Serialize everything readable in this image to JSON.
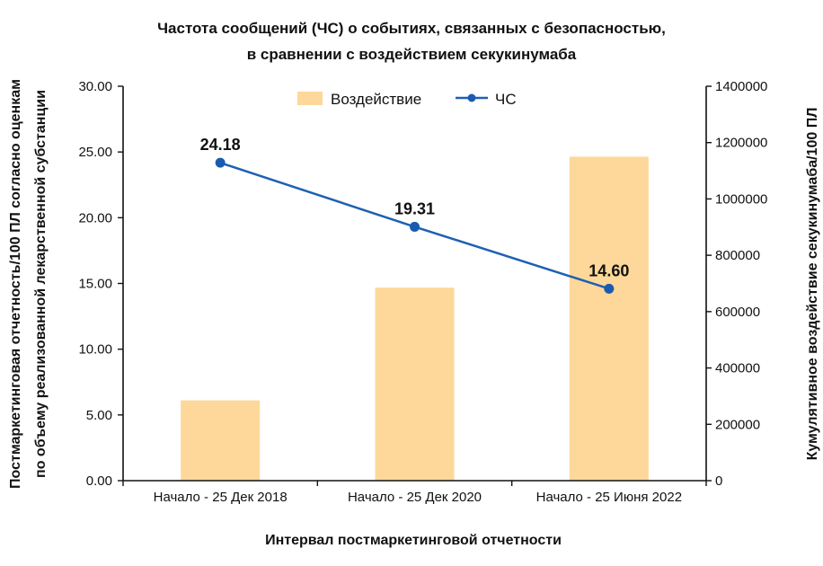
{
  "chart_data": {
    "type": "bar+line",
    "title_lines": [
      "Частота сообщений (ЧС) о событиях, связанных с безопасностью,",
      "в сравнении с воздействием секукинумаба"
    ],
    "categories": [
      "Начало - 25 Дек 2018",
      "Начало - 25 Дек 2020",
      "Начало - 25 Июня 2022"
    ],
    "xlabel": "Интервал постмаркетинговой отчетности",
    "ylabel_left_lines": [
      "Постмаркетинговая отчетность/100 ПЛ согласно оценкам",
      "по объему реализованной лекарственной субстанции"
    ],
    "ylabel_right": "Кумулятивное воздействие секукинумаба/100 ПЛ",
    "ylim_left": [
      0,
      30
    ],
    "ylim_right": [
      0,
      1400000
    ],
    "left_ticks": [
      "0.00",
      "5.00",
      "10.00",
      "15.00",
      "20.00",
      "25.00",
      "30.00"
    ],
    "right_ticks": [
      "0",
      "200000",
      "400000",
      "600000",
      "800000",
      "1000000",
      "1200000",
      "1400000"
    ],
    "series": [
      {
        "name": "Воздействие",
        "type": "bar",
        "axis": "right",
        "values": [
          285000,
          685000,
          1150000
        ]
      },
      {
        "name": "ЧС",
        "type": "line",
        "axis": "left",
        "values": [
          24.18,
          19.31,
          14.6
        ],
        "labels": [
          "24.18",
          "19.31",
          "14.60"
        ]
      }
    ],
    "legend_position": "top-center",
    "grid": false,
    "colors": {
      "bar": "#FDD89A",
      "line": "#1F5FB4",
      "marker": "#1A5BB0",
      "axis": "#111111"
    }
  }
}
